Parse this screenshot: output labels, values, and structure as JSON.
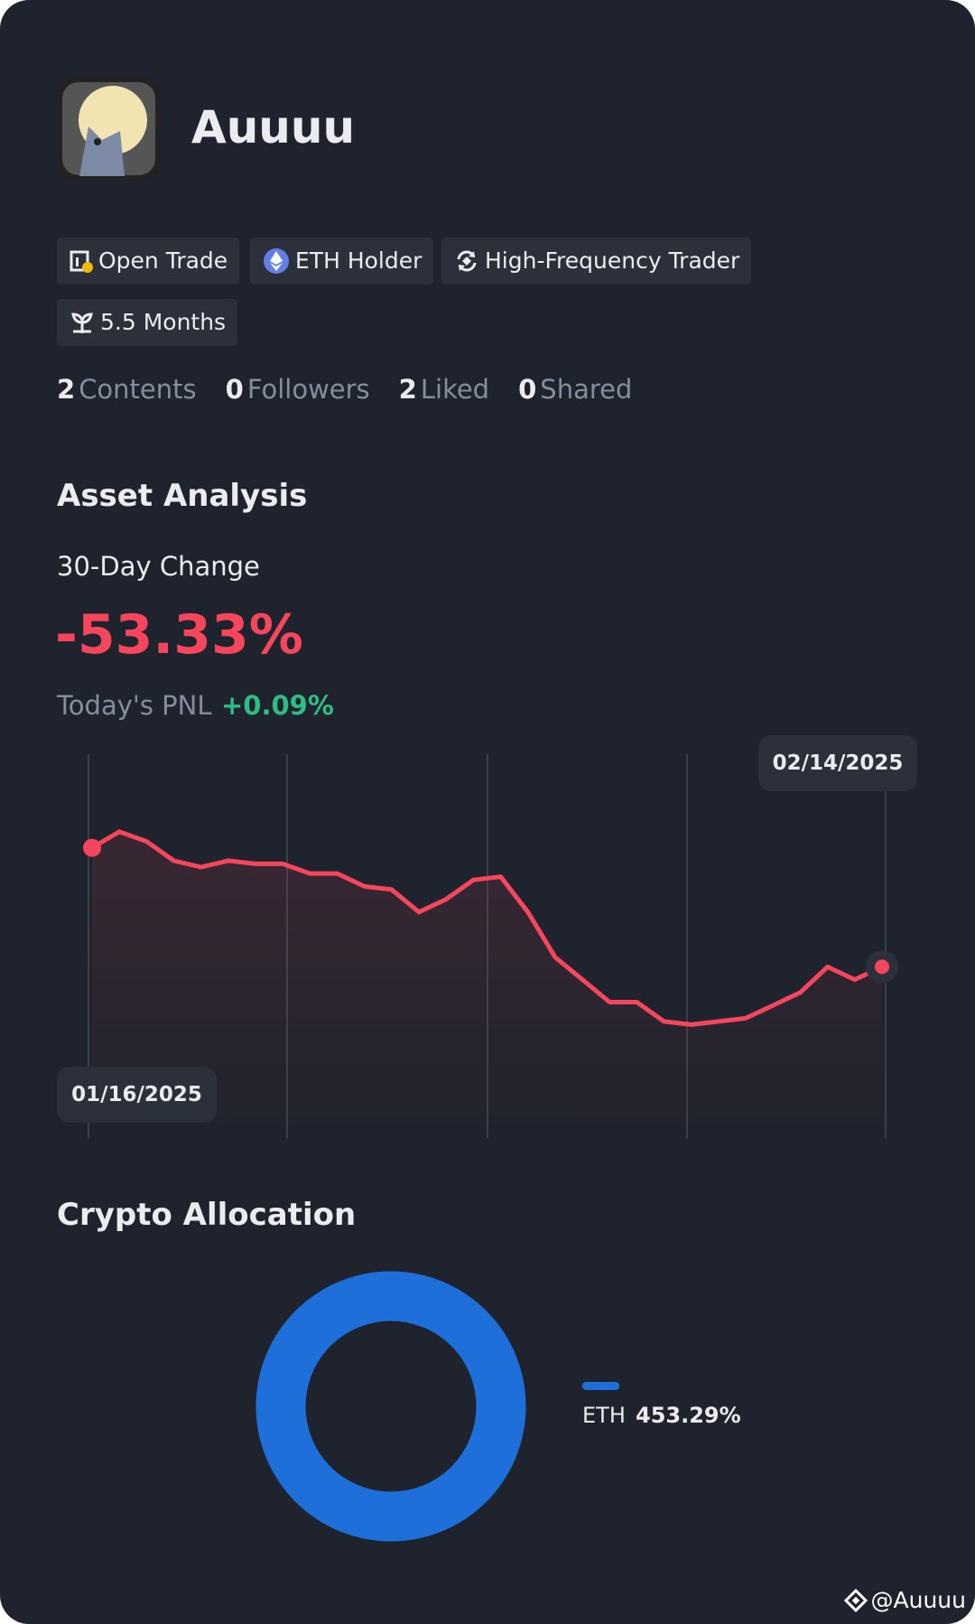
{
  "profile": {
    "name": "Auuuu",
    "badges": [
      "Open Trade",
      "ETH Holder",
      "High-Frequency Trader",
      "5.5 Months"
    ],
    "stats": [
      {
        "count": 2,
        "label": "Contents"
      },
      {
        "count": 0,
        "label": "Followers"
      },
      {
        "count": 2,
        "label": "Liked"
      },
      {
        "count": 0,
        "label": "Shared"
      }
    ]
  },
  "asset_analysis": {
    "title": "Asset Analysis",
    "change_label": "30-Day Change",
    "change": "-53.33%",
    "pnl_label": "Today's PNL",
    "pnl": "+0.09%"
  },
  "watermark": "@Auuuu",
  "chart_data": [
    {
      "type": "line",
      "x": [
        "01/16/2025",
        null,
        null,
        null,
        null,
        null,
        null,
        null,
        null,
        null,
        null,
        null,
        null,
        null,
        null,
        null,
        null,
        null,
        null,
        null,
        null,
        null,
        null,
        null,
        null,
        null,
        null,
        null,
        null,
        "02/14/2025"
      ],
      "series": [
        {
          "color": "#f6465d",
          "values": [
            81,
            86,
            83,
            77,
            75,
            77,
            76,
            76,
            73,
            73,
            69,
            68,
            61,
            65,
            71,
            72,
            61,
            47,
            40,
            33,
            33,
            27,
            26,
            27,
            28,
            32,
            36,
            44,
            40,
            44
          ]
        }
      ],
      "ylim": [
        0,
        100
      ]
    },
    {
      "type": "pie",
      "title": "Crypto Allocation",
      "categories": [
        "ETH"
      ],
      "values": [
        453.29
      ],
      "value_labels": [
        "453.29%"
      ],
      "colors": [
        "#1e6fd9"
      ]
    }
  ]
}
